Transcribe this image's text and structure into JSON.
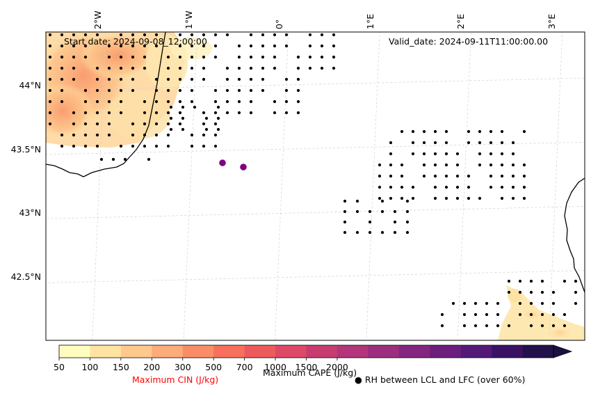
{
  "header": {
    "start_date": "Start date: 2024-09-08_12:00:00",
    "valid_date": "Valid_date: 2024-09-11T11:00:00.00"
  },
  "map": {
    "lon_labels": [
      "2°W",
      "1°W",
      "0°",
      "1°E",
      "2°E",
      "3°E"
    ],
    "lat_labels": [
      "44°N",
      "43.5°N",
      "43°N",
      "42.5°N"
    ],
    "markers": [
      {
        "name": "purple-marker-1",
        "lon": -0.72,
        "lat": 43.38
      },
      {
        "name": "purple-marker-2",
        "lon": -0.49,
        "lat": 43.35
      }
    ],
    "colors": {
      "marker": "#800080",
      "coast": "#000000",
      "grid": "#cccccc",
      "cape_low": "#ffe9a8",
      "cape_mid": "#fca36f"
    }
  },
  "colorbar": {
    "ticks": [
      "50",
      "100",
      "150",
      "200",
      "300",
      "500",
      "700",
      "1000",
      "1500",
      "2000"
    ],
    "colors": [
      "#fffcbf",
      "#fee4a2",
      "#fdc98d",
      "#fcac7a",
      "#fa8d67",
      "#f6705c",
      "#ec5a5d",
      "#dd4a67",
      "#c83d71",
      "#b3357a",
      "#9c2d7f",
      "#84257f",
      "#6c1e7d",
      "#541977",
      "#3b1263",
      "#22114b"
    ],
    "extend_color": "#1b1040",
    "cin_label": "Maximum CIN (J/kg)",
    "cin_color": "#ff0000",
    "cape_label": "Maximum CAPE (J/kg)",
    "rh_label": "RH between LCL and LFC (over 60%)",
    "rh_symbol": "●"
  }
}
